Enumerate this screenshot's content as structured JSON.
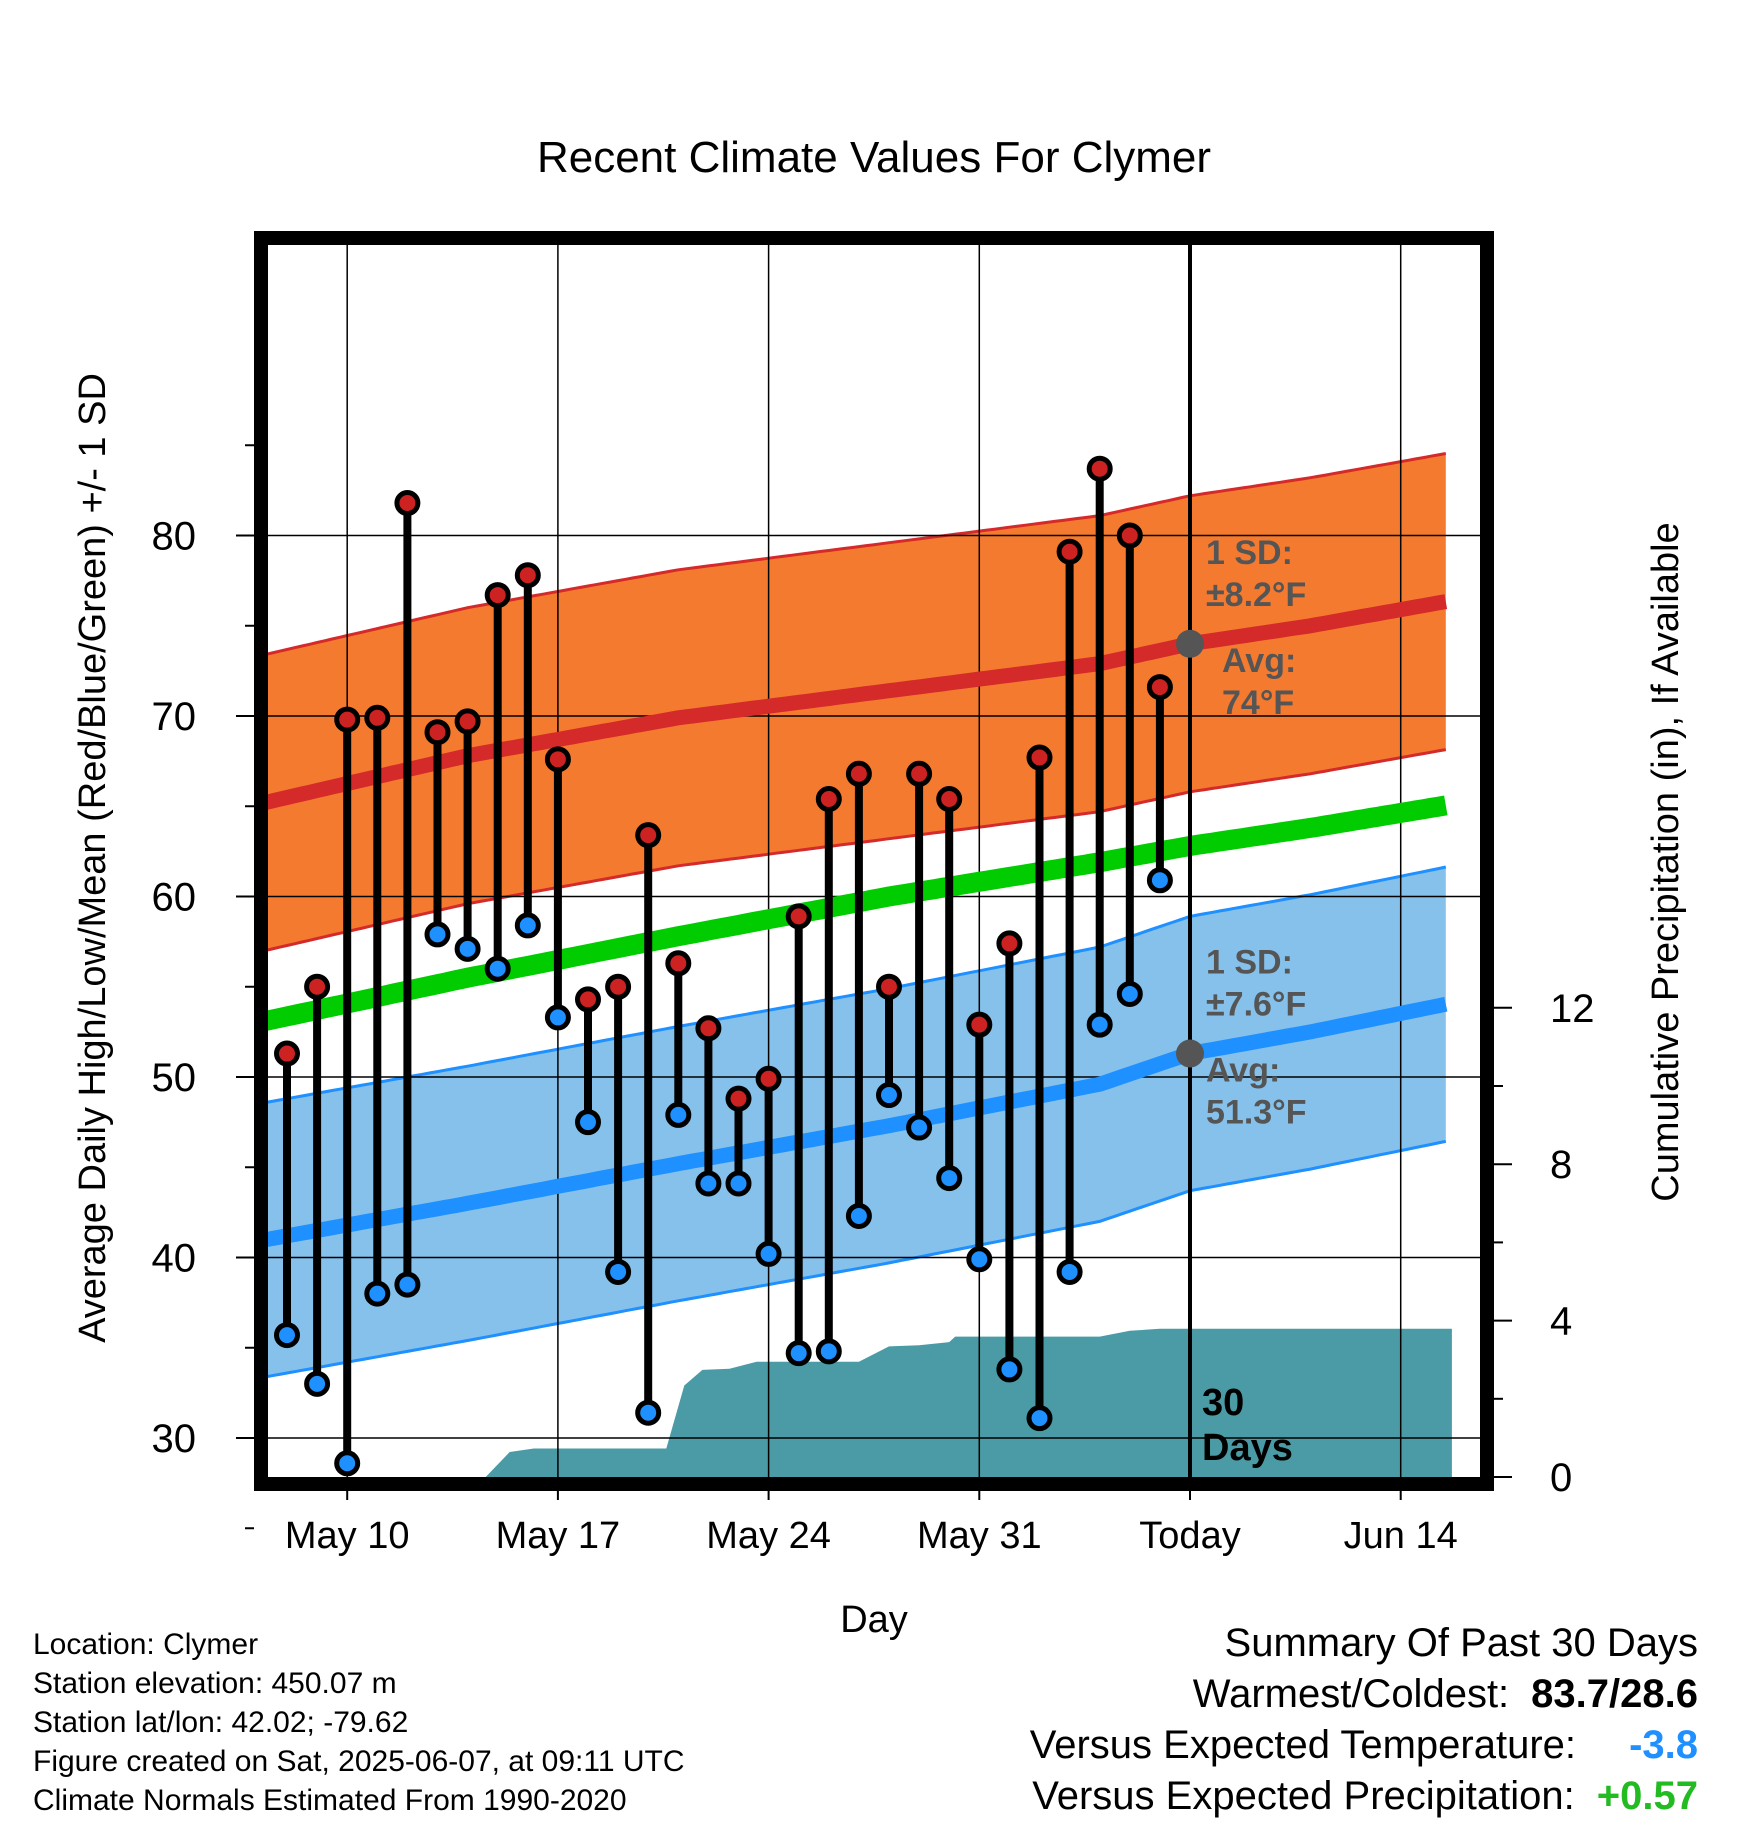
{
  "chart_data": {
    "type": "scatter",
    "title": "Recent Climate Values For Clymer",
    "xlabel": "Day",
    "ylabel_left": "Average Daily High/Low/Mean (Red/Blue/Green) +/- 1 SD",
    "ylabel_right": "Cumulative Precipitation (in), If Available",
    "x_day_range": [
      -31,
      8.7
    ],
    "ylim_left": [
      20.5,
      89.5
    ],
    "ylim_right": [
      0,
      25
    ],
    "x_ticks": [
      {
        "day": -28,
        "label": "May 10"
      },
      {
        "day": -21,
        "label": "May 17"
      },
      {
        "day": -14,
        "label": "May 24"
      },
      {
        "day": -7,
        "label": "May 31"
      },
      {
        "day": 0,
        "label": "Today"
      },
      {
        "day": 7,
        "label": "Jun 14"
      }
    ],
    "y_ticks_left": [
      30,
      40,
      50,
      60,
      70,
      80
    ],
    "y_ticks_right": [
      0,
      4,
      8,
      12
    ],
    "grid": true,
    "observed_days": [
      -30,
      -29,
      -28,
      -27,
      -26,
      -25,
      -24,
      -23,
      -22,
      -21,
      -20,
      -19,
      -18,
      -17,
      -16,
      -15,
      -14,
      -13,
      -12,
      -11,
      -10,
      -9,
      -8,
      -7,
      -6,
      -5,
      -4,
      -3,
      -2,
      -1
    ],
    "series": [
      {
        "name": "High",
        "values": [
          51.3,
          55.0,
          69.8,
          69.9,
          81.8,
          69.1,
          69.7,
          76.7,
          77.8,
          67.6,
          54.3,
          55.0,
          63.4,
          56.3,
          52.7,
          48.8,
          49.9,
          58.9,
          65.4,
          66.8,
          55.0,
          66.8,
          65.4,
          52.9,
          57.4,
          67.7,
          79.1,
          83.7,
          80.0,
          71.6
        ]
      },
      {
        "name": "Low",
        "values": [
          35.7,
          33.0,
          28.6,
          38.0,
          38.5,
          57.9,
          57.1,
          56.0,
          58.4,
          53.3,
          47.5,
          39.2,
          31.4,
          47.9,
          44.1,
          44.1,
          40.2,
          34.7,
          34.8,
          42.3,
          49.0,
          47.2,
          44.4,
          39.9,
          33.8,
          31.1,
          39.2,
          52.9,
          54.6,
          60.9
        ]
      }
    ],
    "normals": {
      "days": [
        -31,
        -24,
        -17,
        -10,
        -3,
        0,
        4,
        8.7
      ],
      "avg_high": [
        65.1,
        67.8,
        69.9,
        71.4,
        72.9,
        74.0,
        75.0,
        76.4
      ],
      "high_sd": 8.2,
      "avg_low": [
        40.9,
        43.0,
        45.2,
        47.3,
        49.6,
        51.3,
        52.5,
        54.1
      ],
      "low_sd": 7.6,
      "avg_mean": [
        53.0,
        55.5,
        57.8,
        60.0,
        61.9,
        62.8,
        63.8,
        65.1
      ]
    },
    "precip_cumulative": {
      "days": [
        -23.4,
        -22.6,
        -21.8,
        -20.8,
        -19,
        -17.4,
        -16.8,
        -16.2,
        -15.3,
        -14.4,
        -13,
        -12,
        -11,
        -10,
        -9,
        -8,
        -7.8,
        -7,
        -6,
        -5,
        -4,
        -3,
        -2,
        -1,
        0,
        8.7
      ],
      "values": [
        0,
        0.64,
        0.73,
        0.73,
        0.73,
        0.73,
        2.34,
        2.74,
        2.77,
        2.95,
        2.95,
        2.95,
        2.95,
        3.34,
        3.37,
        3.45,
        3.59,
        3.59,
        3.59,
        3.59,
        3.59,
        3.59,
        3.74,
        3.79,
        3.79,
        3.79
      ]
    },
    "annotations": {
      "high_sd_label": "1 SD:",
      "high_sd_value": "±8.2°F",
      "high_avg_label": "Avg:",
      "high_avg_value": "74°F",
      "high_avg": 74.0,
      "low_sd_label": "1 SD:",
      "low_sd_value": "±7.6°F",
      "low_avg_label": "Avg:",
      "low_avg_value": "51.3°F",
      "low_avg": 51.3,
      "days_count": "30",
      "days_word": "Days"
    },
    "colors": {
      "high_band": "#f47a30",
      "high_line": "#d42a2a",
      "low_band": "#85c1ea",
      "low_line": "#1e90ff",
      "mean_line": "#00cc00",
      "precip": "#4a9ba5",
      "high_dot": "#cc2222",
      "low_dot": "#1e90ff",
      "annotation": "#555555"
    }
  },
  "footer": {
    "location": "Location: Clymer",
    "elevation": "Station elevation: 450.07 m",
    "latlon": "Station lat/lon: 42.02; -79.62",
    "created": "Figure created on Sat, 2025-06-07, at 09:11 UTC",
    "normals": "Climate Normals Estimated From 1990-2020"
  },
  "summary": {
    "title": "Summary Of Past 30 Days",
    "warm_cold_label": "Warmest/Coldest:",
    "warm_cold_value": "83.7/28.6",
    "temp_label": "Versus Expected Temperature:",
    "temp_value": "-3.8",
    "temp_color": "#1e90ff",
    "precip_label": "Versus Expected Precipitation:",
    "precip_value": "+0.57",
    "precip_color": "#22bb22"
  }
}
